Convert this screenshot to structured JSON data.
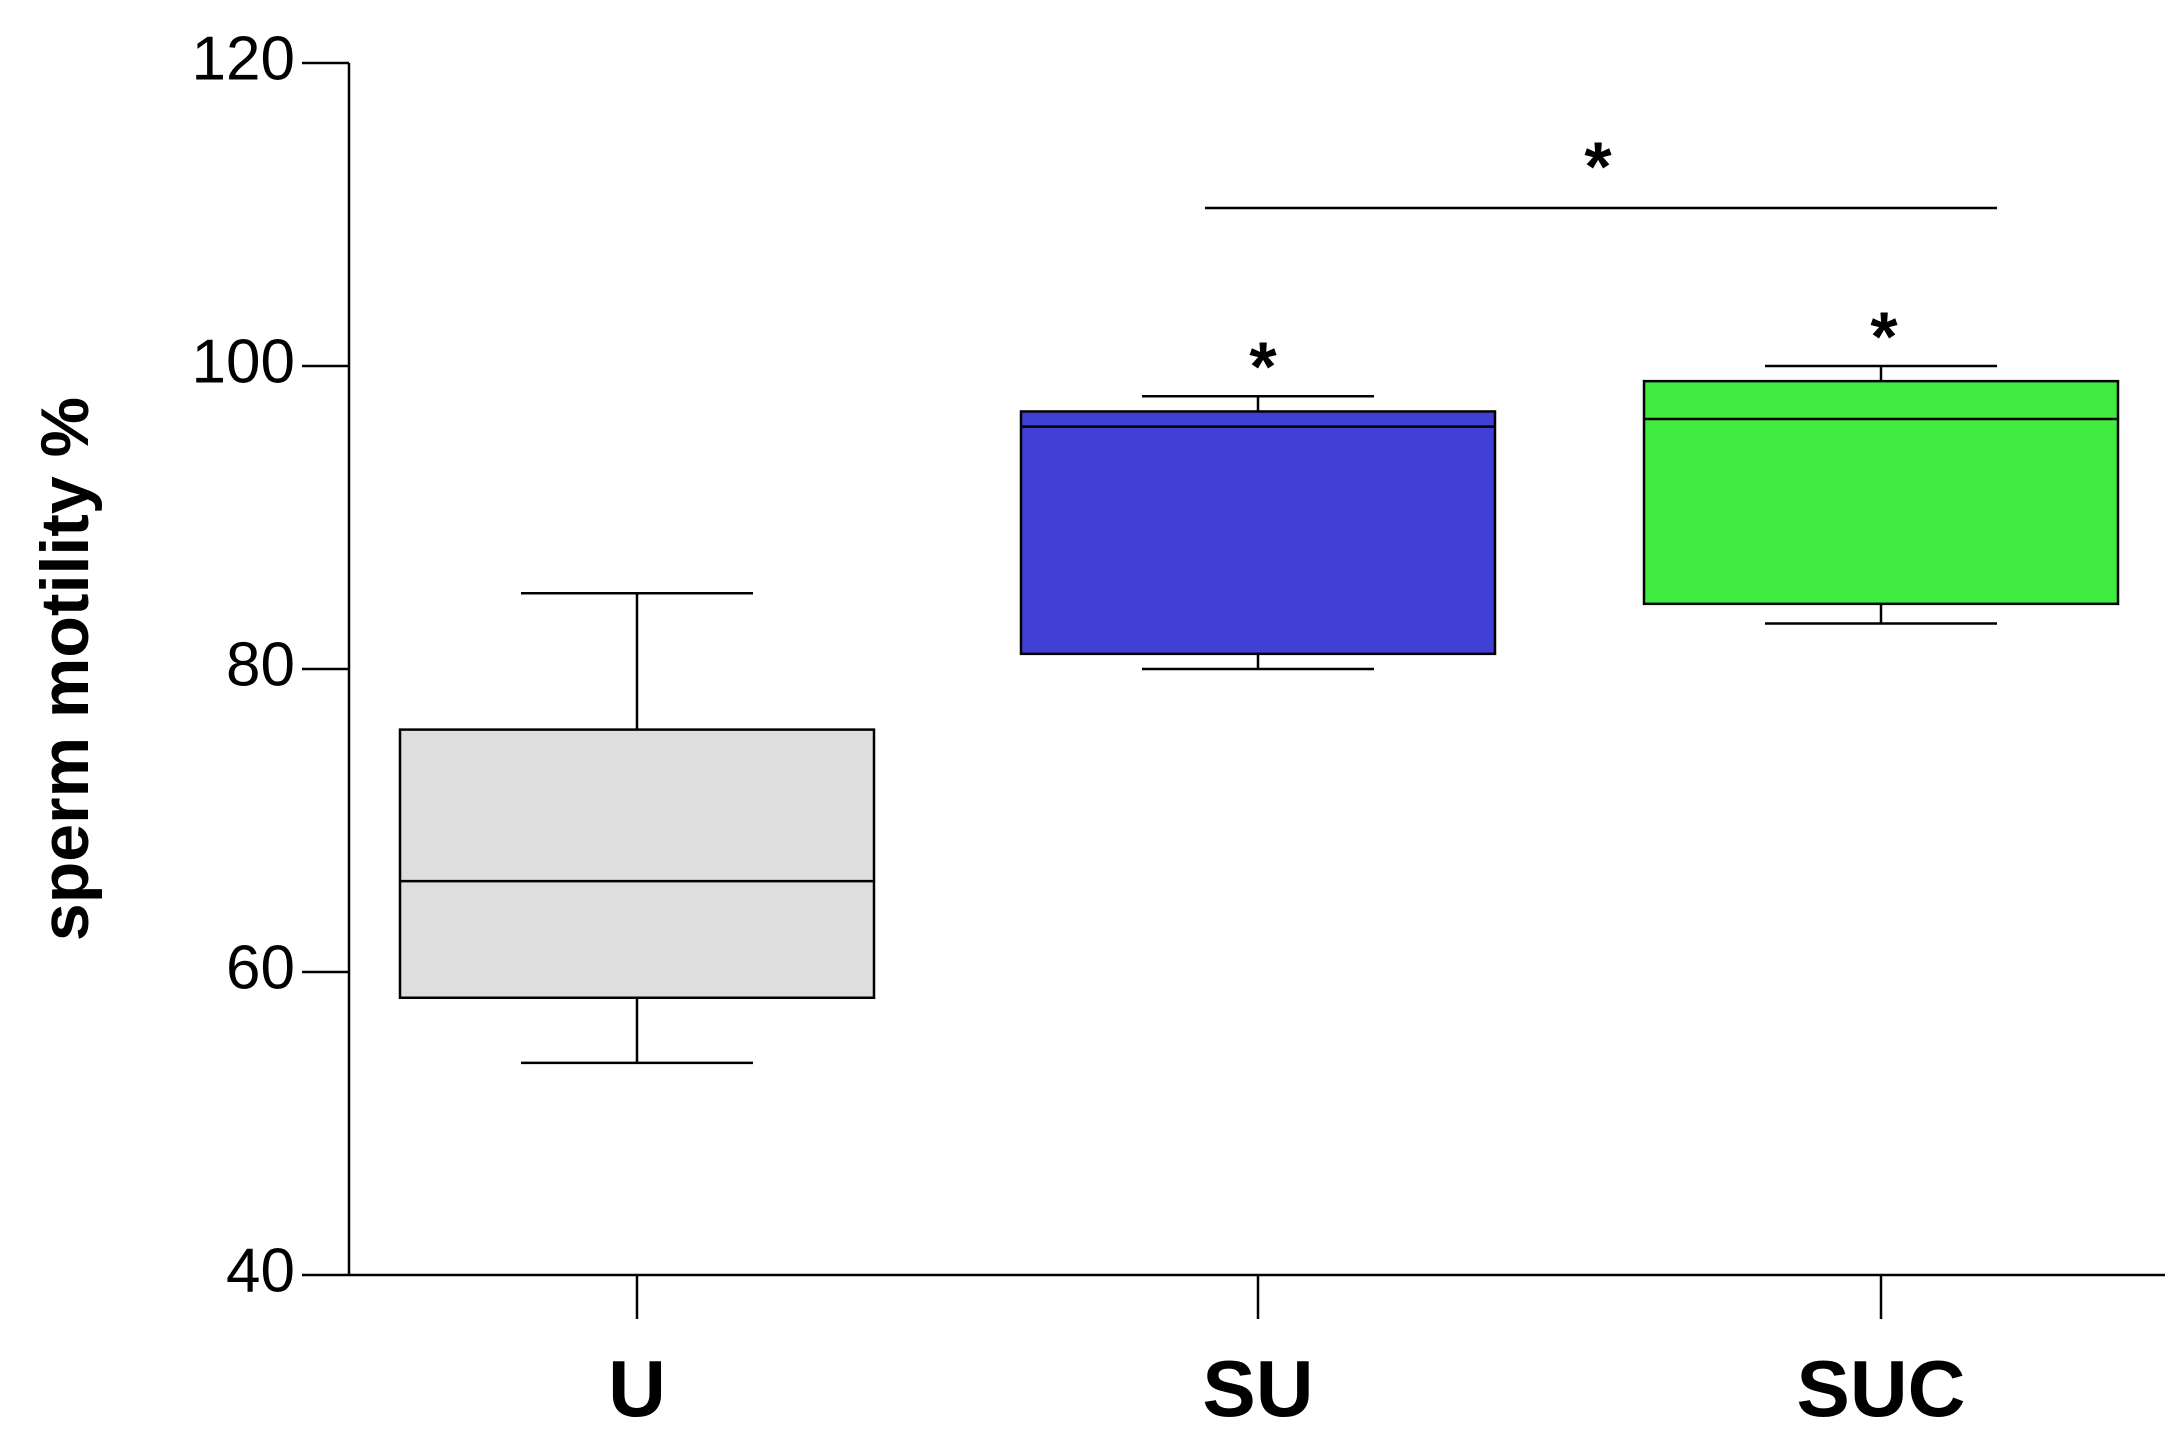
{
  "chart_data": {
    "type": "box",
    "y_label": "sperm motility %",
    "categories": [
      "U",
      "SU",
      "SUC"
    ],
    "boxes": [
      {
        "whisker_low": 54,
        "q1": 58.3,
        "median": 66,
        "q3": 76,
        "whisker_high": 85,
        "color": "#dedede"
      },
      {
        "whisker_low": 80,
        "q1": 81,
        "median": 96,
        "q3": 97,
        "whisker_high": 98,
        "color": "#4040d6"
      },
      {
        "whisker_low": 83,
        "q1": 84.3,
        "median": 96.5,
        "q3": 99,
        "whisker_high": 100,
        "color": "#40ec40"
      }
    ],
    "annotations": [
      "*",
      "*",
      "*"
    ],
    "ylim": [
      40,
      120
    ],
    "yticks": [
      40,
      60,
      80,
      100,
      120
    ],
    "grid": false
  }
}
